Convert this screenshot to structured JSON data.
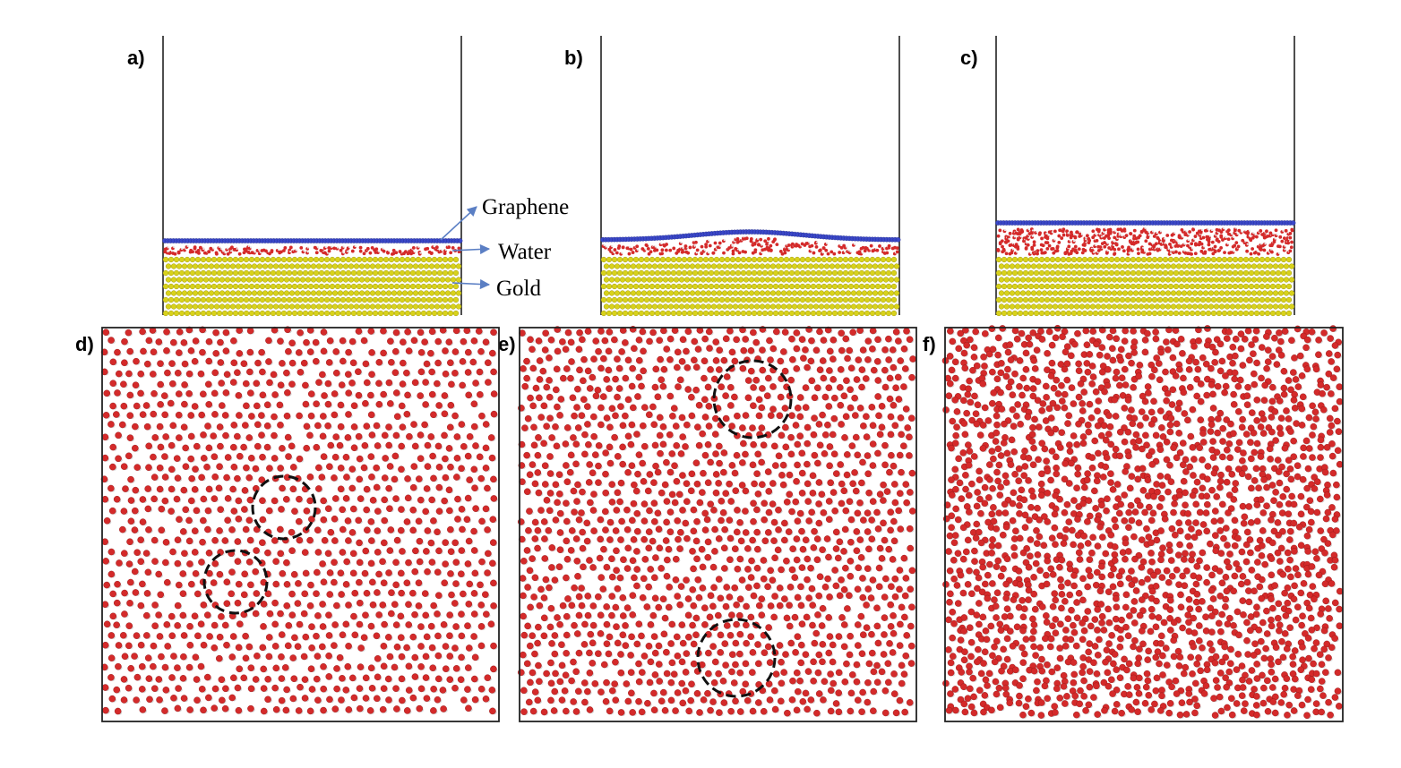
{
  "panels": {
    "a": {
      "label": "a)"
    },
    "b": {
      "label": "b)"
    },
    "c": {
      "label": "c)"
    },
    "d": {
      "label": "d)"
    },
    "e": {
      "label": "e)"
    },
    "f": {
      "label": "f)"
    }
  },
  "callouts": {
    "graphene": "Graphene",
    "water": "Water",
    "gold": "Gold"
  },
  "colors": {
    "graphene": "#3a47c8",
    "water_oxygen": "#d42a2a",
    "water_hydrogen": "#e6e6e6",
    "gold": "#d8d21c",
    "arrow": "#5b7fc4",
    "frame": "#222222"
  }
}
